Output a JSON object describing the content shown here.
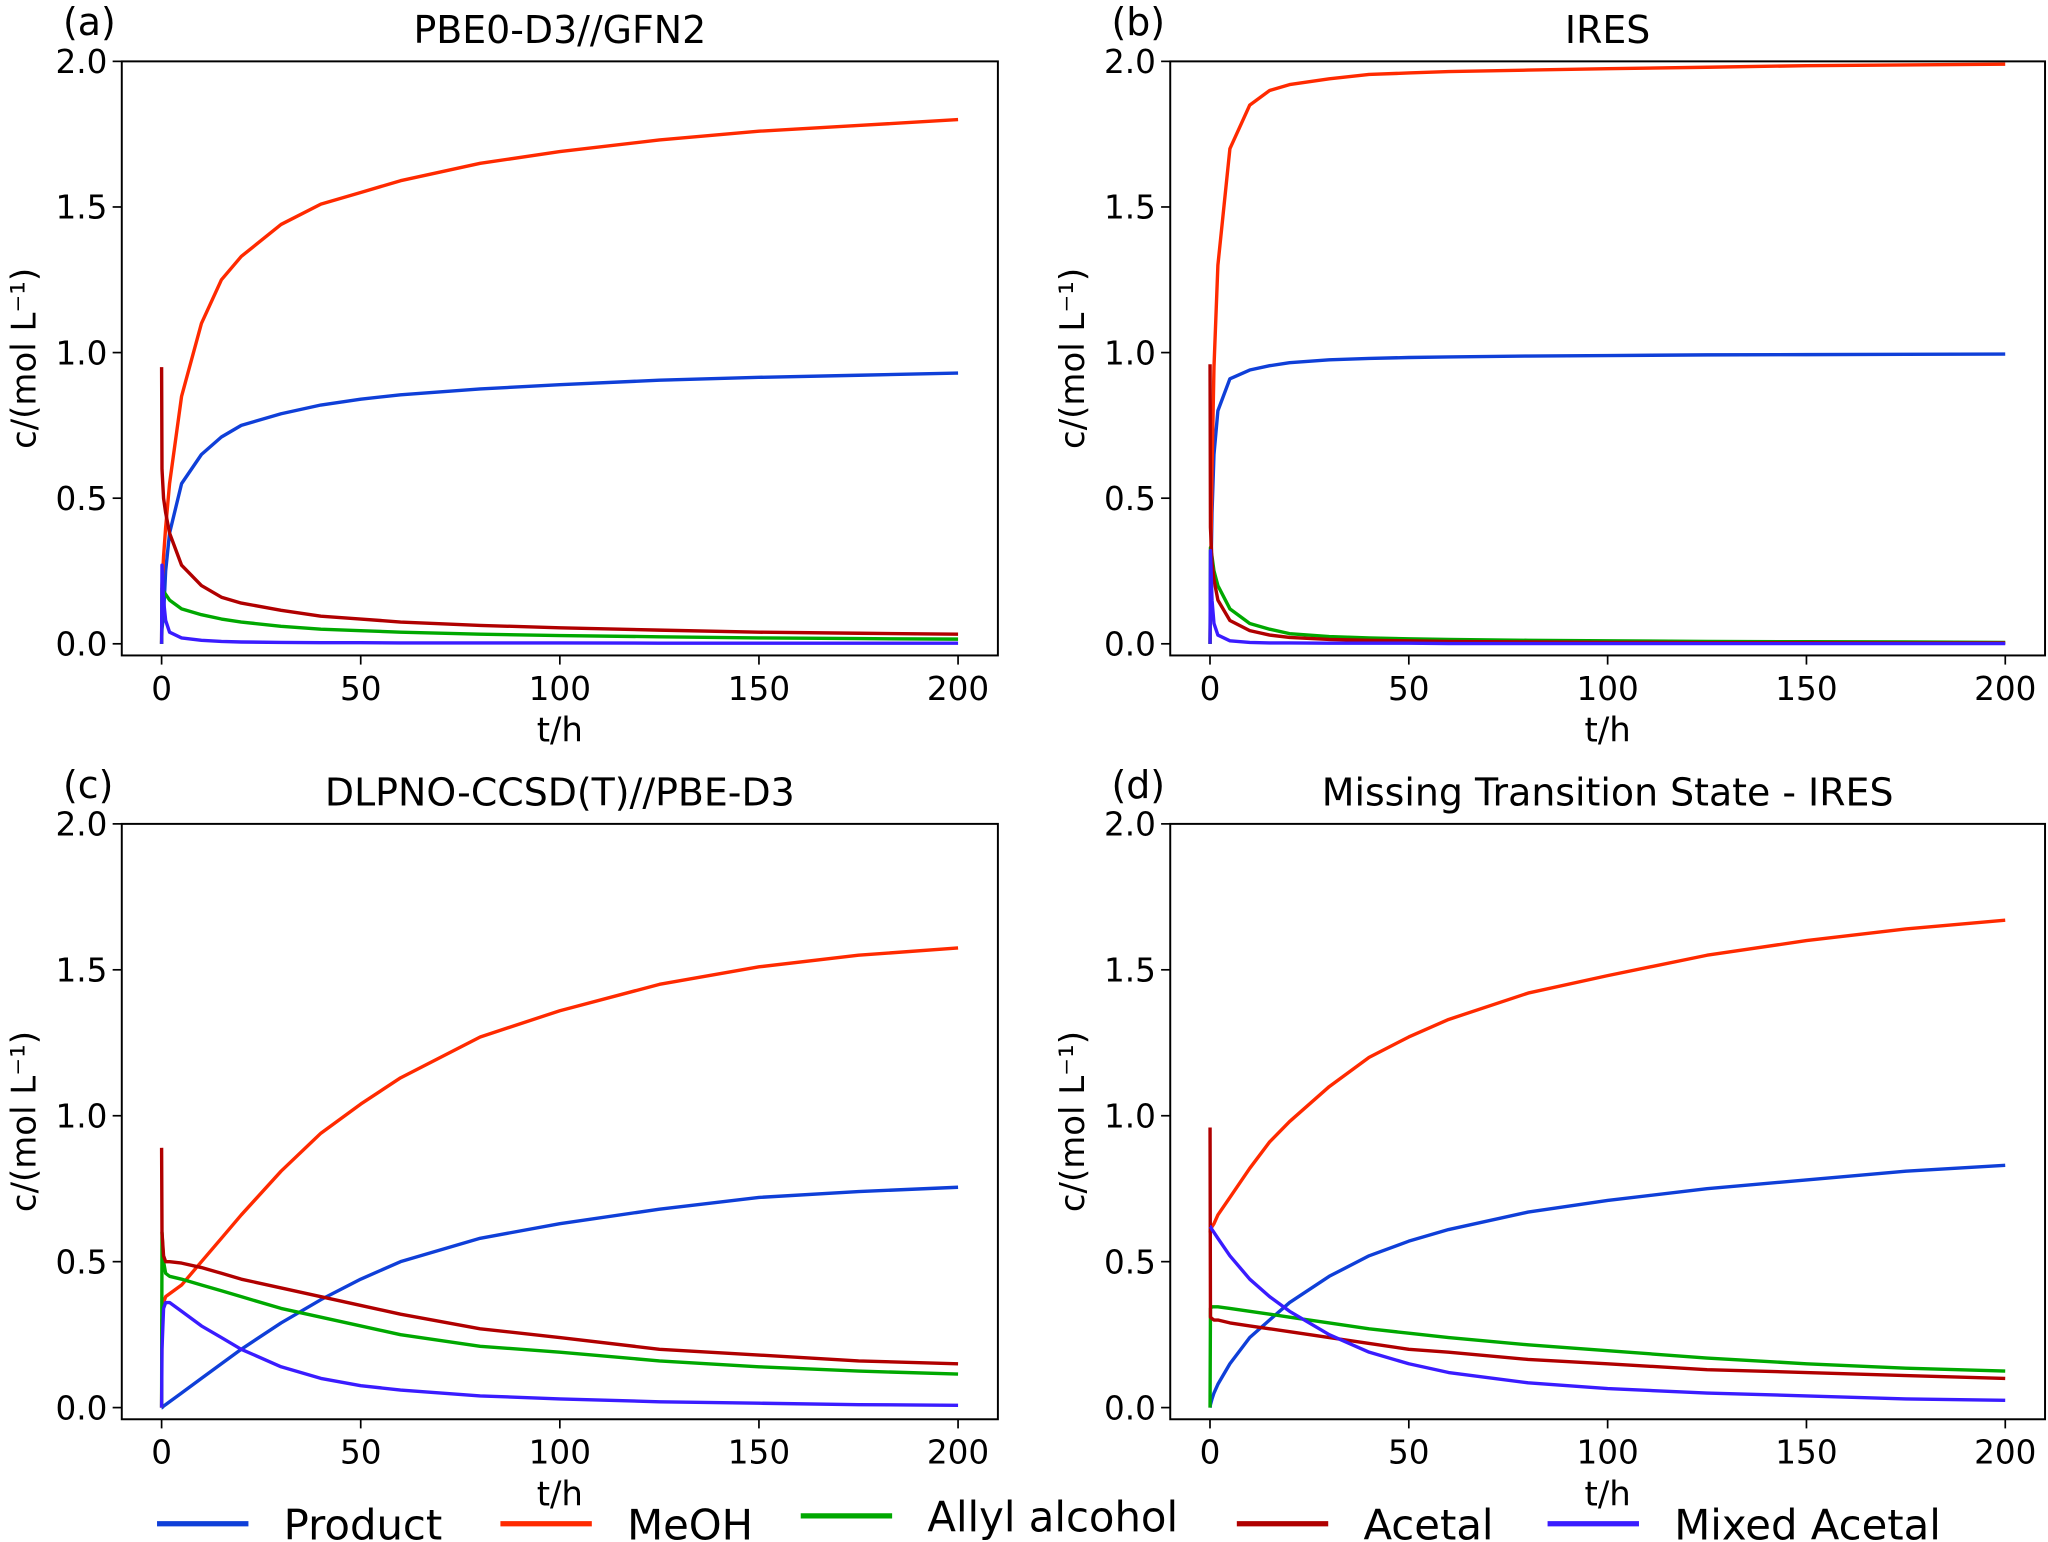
{
  "chart_data": [
    {
      "type": "line",
      "panel_label": "(a)",
      "title": "PBE0-D3//GFN2",
      "xlabel": "t/h",
      "ylabel": "c/(mol L⁻¹)",
      "xlim": [
        -10,
        210
      ],
      "ylim": [
        -0.04,
        2.0
      ],
      "xticks": [
        0,
        50,
        100,
        150,
        200
      ],
      "yticks": [
        0.0,
        0.5,
        1.0,
        1.5,
        2.0
      ],
      "ytick_labels": [
        "0.0",
        "0.5",
        "1.0",
        "1.5",
        "2.0"
      ],
      "grid": false,
      "x": [
        0,
        0.1,
        0.5,
        1,
        2,
        5,
        10,
        15,
        20,
        30,
        40,
        50,
        60,
        80,
        100,
        125,
        150,
        175,
        200
      ],
      "series": [
        {
          "name": "Product",
          "values": [
            0,
            0.05,
            0.1,
            0.25,
            0.38,
            0.55,
            0.65,
            0.71,
            0.75,
            0.79,
            0.82,
            0.84,
            0.855,
            0.875,
            0.89,
            0.905,
            0.915,
            0.922,
            0.93
          ]
        },
        {
          "name": "MeOH",
          "values": [
            0,
            0.2,
            0.3,
            0.4,
            0.55,
            0.85,
            1.1,
            1.25,
            1.33,
            1.44,
            1.51,
            1.55,
            1.59,
            1.65,
            1.69,
            1.73,
            1.76,
            1.78,
            1.8
          ]
        },
        {
          "name": "Allyl alcohol",
          "values": [
            0,
            0.19,
            0.18,
            0.17,
            0.15,
            0.12,
            0.1,
            0.085,
            0.075,
            0.06,
            0.05,
            0.045,
            0.04,
            0.033,
            0.028,
            0.024,
            0.02,
            0.018,
            0.016
          ]
        },
        {
          "name": "Acetal",
          "values": [
            0.95,
            0.6,
            0.5,
            0.45,
            0.38,
            0.27,
            0.2,
            0.16,
            0.14,
            0.115,
            0.095,
            0.085,
            0.075,
            0.063,
            0.055,
            0.047,
            0.04,
            0.036,
            0.033
          ]
        },
        {
          "name": "Mixed Acetal",
          "values": [
            0,
            0.27,
            0.15,
            0.08,
            0.04,
            0.02,
            0.012,
            0.008,
            0.006,
            0.005,
            0.004,
            0.004,
            0.003,
            0.003,
            0.003,
            0.002,
            0.002,
            0.002,
            0.002
          ]
        }
      ]
    },
    {
      "type": "line",
      "panel_label": "(b)",
      "title": "IRES",
      "xlabel": "t/h",
      "ylabel": "c/(mol L⁻¹)",
      "xlim": [
        -10,
        210
      ],
      "ylim": [
        -0.04,
        2.0
      ],
      "xticks": [
        0,
        50,
        100,
        150,
        200
      ],
      "yticks": [
        0.0,
        0.5,
        1.0,
        1.5,
        2.0
      ],
      "ytick_labels": [
        "0.0",
        "0.5",
        "1.0",
        "1.5",
        "2.0"
      ],
      "grid": false,
      "x": [
        0,
        0.1,
        0.5,
        1,
        2,
        5,
        10,
        15,
        20,
        30,
        40,
        50,
        60,
        80,
        100,
        125,
        150,
        175,
        200
      ],
      "series": [
        {
          "name": "Product",
          "values": [
            0,
            0.15,
            0.45,
            0.65,
            0.8,
            0.91,
            0.94,
            0.955,
            0.965,
            0.975,
            0.98,
            0.983,
            0.985,
            0.988,
            0.99,
            0.992,
            0.993,
            0.994,
            0.995
          ]
        },
        {
          "name": "MeOH",
          "values": [
            0,
            0.2,
            0.6,
            0.95,
            1.3,
            1.7,
            1.85,
            1.9,
            1.92,
            1.94,
            1.955,
            1.96,
            1.965,
            1.97,
            1.975,
            1.98,
            1.985,
            1.988,
            1.99
          ]
        },
        {
          "name": "Allyl alcohol",
          "values": [
            0,
            0.33,
            0.3,
            0.25,
            0.2,
            0.12,
            0.07,
            0.05,
            0.035,
            0.025,
            0.02,
            0.017,
            0.015,
            0.012,
            0.01,
            0.008,
            0.007,
            0.006,
            0.005
          ]
        },
        {
          "name": "Acetal",
          "values": [
            0.96,
            0.4,
            0.28,
            0.22,
            0.15,
            0.08,
            0.045,
            0.03,
            0.022,
            0.015,
            0.012,
            0.01,
            0.008,
            0.006,
            0.005,
            0.004,
            0.004,
            0.003,
            0.003
          ]
        },
        {
          "name": "Mixed Acetal",
          "values": [
            0,
            0.32,
            0.15,
            0.07,
            0.03,
            0.01,
            0.005,
            0.003,
            0.003,
            0.002,
            0.002,
            0.002,
            0.001,
            0.001,
            0.001,
            0.001,
            0.001,
            0.001,
            0.001
          ]
        }
      ]
    },
    {
      "type": "line",
      "panel_label": "(c)",
      "title": "DLPNO-CCSD(T)//PBE-D3",
      "xlabel": "t/h",
      "ylabel": "c/(mol L⁻¹)",
      "xlim": [
        -10,
        210
      ],
      "ylim": [
        -0.04,
        2.0
      ],
      "xticks": [
        0,
        50,
        100,
        150,
        200
      ],
      "yticks": [
        0.0,
        0.5,
        1.0,
        1.5,
        2.0
      ],
      "ytick_labels": [
        "0.0",
        "0.5",
        "1.0",
        "1.5",
        "2.0"
      ],
      "grid": false,
      "x": [
        0,
        0.1,
        0.5,
        1,
        2,
        5,
        10,
        15,
        20,
        30,
        40,
        50,
        60,
        80,
        100,
        125,
        150,
        175,
        200
      ],
      "series": [
        {
          "name": "Product",
          "values": [
            0,
            0,
            0.005,
            0.01,
            0.02,
            0.05,
            0.1,
            0.15,
            0.2,
            0.29,
            0.37,
            0.44,
            0.5,
            0.58,
            0.63,
            0.68,
            0.72,
            0.74,
            0.755
          ]
        },
        {
          "name": "MeOH",
          "values": [
            0,
            0.3,
            0.36,
            0.38,
            0.39,
            0.42,
            0.5,
            0.58,
            0.66,
            0.81,
            0.94,
            1.04,
            1.13,
            1.27,
            1.36,
            1.45,
            1.51,
            1.55,
            1.575
          ]
        },
        {
          "name": "Allyl alcohol",
          "values": [
            0,
            0.6,
            0.5,
            0.46,
            0.45,
            0.44,
            0.42,
            0.4,
            0.38,
            0.34,
            0.31,
            0.28,
            0.25,
            0.21,
            0.19,
            0.16,
            0.14,
            0.125,
            0.115
          ]
        },
        {
          "name": "Acetal",
          "values": [
            0.89,
            0.6,
            0.52,
            0.5,
            0.5,
            0.495,
            0.48,
            0.46,
            0.44,
            0.41,
            0.38,
            0.35,
            0.32,
            0.27,
            0.24,
            0.2,
            0.18,
            0.16,
            0.15
          ]
        },
        {
          "name": "Mixed Acetal",
          "values": [
            0,
            0.2,
            0.34,
            0.36,
            0.36,
            0.33,
            0.28,
            0.24,
            0.2,
            0.14,
            0.1,
            0.075,
            0.06,
            0.04,
            0.03,
            0.02,
            0.015,
            0.01,
            0.008
          ]
        }
      ]
    },
    {
      "type": "line",
      "panel_label": "(d)",
      "title": "Missing Transition State - IRES",
      "xlabel": "t/h",
      "ylabel": "c/(mol L⁻¹)",
      "xlim": [
        -10,
        210
      ],
      "ylim": [
        -0.04,
        2.0
      ],
      "xticks": [
        0,
        50,
        100,
        150,
        200
      ],
      "yticks": [
        0.0,
        0.5,
        1.0,
        1.5,
        2.0
      ],
      "ytick_labels": [
        "0.0",
        "0.5",
        "1.0",
        "1.5",
        "2.0"
      ],
      "grid": false,
      "x": [
        0,
        0.1,
        0.5,
        1,
        2,
        5,
        10,
        15,
        20,
        30,
        40,
        50,
        60,
        80,
        100,
        125,
        150,
        175,
        200
      ],
      "series": [
        {
          "name": "Product",
          "values": [
            0,
            0.01,
            0.03,
            0.05,
            0.08,
            0.15,
            0.24,
            0.3,
            0.36,
            0.45,
            0.52,
            0.57,
            0.61,
            0.67,
            0.71,
            0.75,
            0.78,
            0.81,
            0.83
          ]
        },
        {
          "name": "MeOH",
          "values": [
            0.6,
            0.61,
            0.62,
            0.63,
            0.66,
            0.72,
            0.82,
            0.91,
            0.98,
            1.1,
            1.2,
            1.27,
            1.33,
            1.42,
            1.48,
            1.55,
            1.6,
            1.64,
            1.67
          ]
        },
        {
          "name": "Allyl alcohol",
          "values": [
            0,
            0.34,
            0.345,
            0.345,
            0.345,
            0.34,
            0.33,
            0.32,
            0.31,
            0.29,
            0.27,
            0.255,
            0.24,
            0.215,
            0.195,
            0.17,
            0.15,
            0.135,
            0.125
          ]
        },
        {
          "name": "Acetal",
          "values": [
            0.96,
            0.31,
            0.305,
            0.3,
            0.3,
            0.29,
            0.28,
            0.27,
            0.26,
            0.24,
            0.22,
            0.2,
            0.19,
            0.165,
            0.15,
            0.13,
            0.12,
            0.11,
            0.1
          ]
        },
        {
          "name": "Mixed Acetal",
          "values": [
            0.62,
            0.62,
            0.61,
            0.6,
            0.58,
            0.52,
            0.44,
            0.38,
            0.33,
            0.25,
            0.19,
            0.15,
            0.12,
            0.085,
            0.065,
            0.05,
            0.04,
            0.03,
            0.025
          ]
        }
      ]
    }
  ],
  "legend": {
    "placement": "bottom",
    "entries": [
      {
        "name": "Product",
        "color": "#0f3fd8"
      },
      {
        "name": "MeOH",
        "color": "#ff2a00"
      },
      {
        "name": "Allyl alcohol",
        "color": "#00a800"
      },
      {
        "name": "Acetal",
        "color": "#b00000"
      },
      {
        "name": "Mixed Acetal",
        "color": "#3a1cff"
      }
    ]
  }
}
